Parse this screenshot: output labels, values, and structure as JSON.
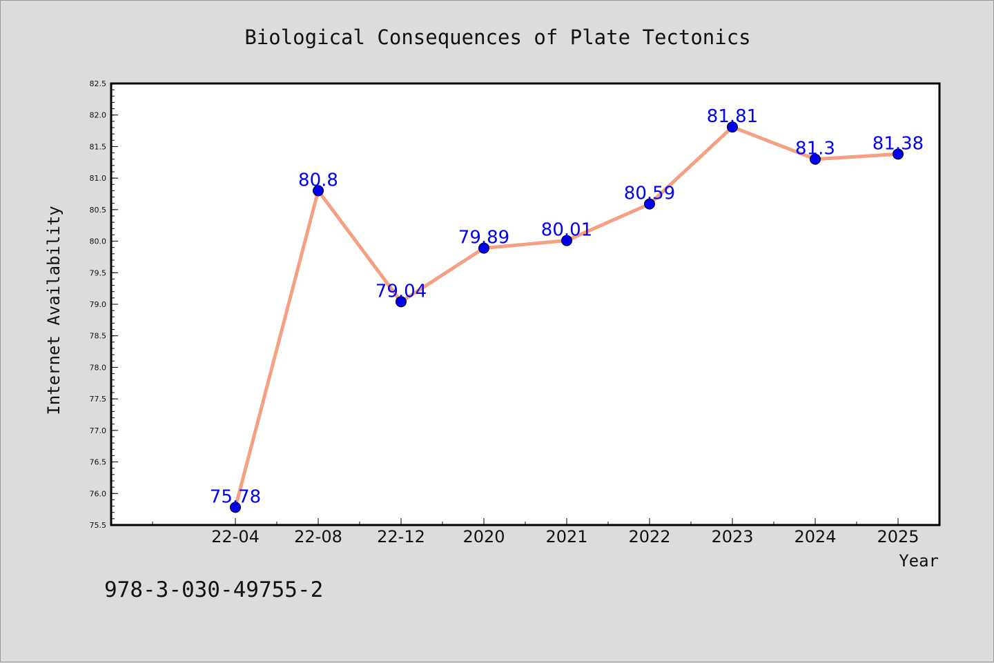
{
  "footer": {
    "code": "978-3-030-49755-2"
  },
  "colors": {
    "line": "#f4a082",
    "marker": "#0000ee",
    "label": "#0000ee",
    "plot_bg": "#ffffff",
    "figure_bg": "#dcdcdc"
  },
  "chart_data": {
    "type": "line",
    "title": "Biological Consequences of Plate Tectonics",
    "xlabel": "Year",
    "ylabel": "Internet Availability",
    "categories": [
      "22-04",
      "22-08",
      "22-12",
      "2020",
      "2021",
      "2022",
      "2023",
      "2024",
      "2025"
    ],
    "series": [
      {
        "values": [
          75.78,
          80.8,
          79.04,
          79.89,
          80.01,
          80.59,
          81.81,
          81.3,
          81.38
        ]
      }
    ],
    "data_labels": [
      "75.78",
      "80.8",
      "79.04",
      "79.89",
      "80.01",
      "80.59",
      "81.81",
      "81.3",
      "81.38"
    ],
    "ylim": [
      75.5,
      82.5
    ],
    "yticks": [
      "75.5",
      "76.0",
      "76.5",
      "77.0",
      "77.5",
      "78.0",
      "78.5",
      "79.0",
      "79.5",
      "80.0",
      "80.5",
      "81.0",
      "81.5",
      "82.0",
      "82.5"
    ],
    "grid": false,
    "legend": "none"
  }
}
